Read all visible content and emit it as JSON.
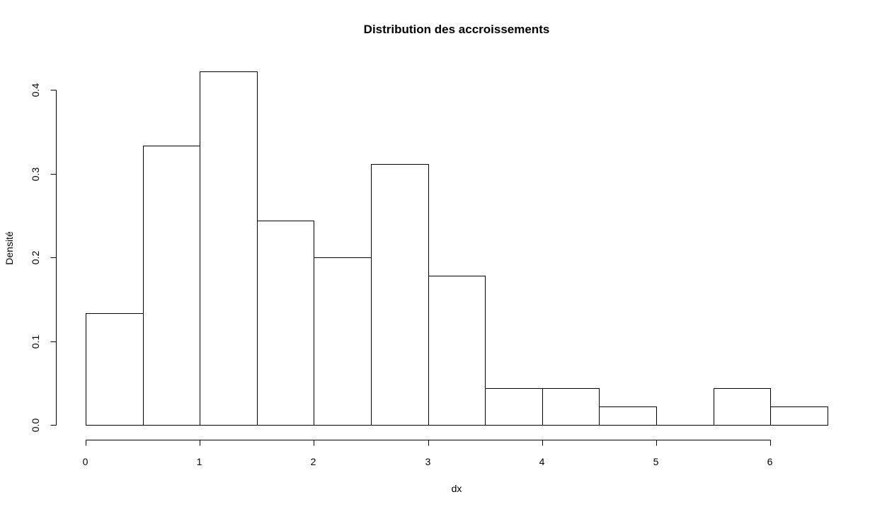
{
  "chart_data": {
    "type": "bar",
    "subtype": "histogram",
    "title": "Distribution des accroissements",
    "xlabel": "dx",
    "ylabel": "Densité",
    "bin_edges": [
      0,
      0.5,
      1,
      1.5,
      2,
      2.5,
      3,
      3.5,
      4,
      4.5,
      5,
      5.5,
      6,
      6.5
    ],
    "values": [
      0.133,
      0.333,
      0.422,
      0.244,
      0.2,
      0.311,
      0.178,
      0.044,
      0.044,
      0.022,
      0,
      0.044,
      0.022
    ],
    "xlim": [
      0,
      6.5
    ],
    "ylim": [
      0,
      0.4
    ],
    "xticks": [
      0,
      1,
      2,
      3,
      4,
      5,
      6
    ],
    "xtick_labels": [
      "0",
      "1",
      "2",
      "3",
      "4",
      "5",
      "6"
    ],
    "yticks": [
      0,
      0.1,
      0.2,
      0.3,
      0.4
    ],
    "ytick_labels": [
      "0.0",
      "0.1",
      "0.2",
      "0.3",
      "0.4"
    ],
    "grid": false,
    "legend": "none",
    "colors": {
      "bar_fill": "#ffffff",
      "bar_stroke": "#000000",
      "background": "#ffffff"
    }
  }
}
